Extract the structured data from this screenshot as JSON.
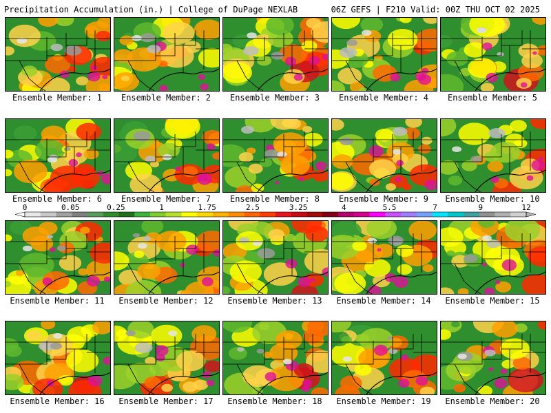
{
  "header": {
    "left": "Precipitation Accumulation (in.) | College of DuPage NEXLAB",
    "right": "06Z GEFS | F210 Valid: 00Z THU OCT 02 2025"
  },
  "members": [
    {
      "label": "Ensemble Member: 1"
    },
    {
      "label": "Ensemble Member: 2"
    },
    {
      "label": "Ensemble Member: 3"
    },
    {
      "label": "Ensemble Member: 4"
    },
    {
      "label": "Ensemble Member: 5"
    },
    {
      "label": "Ensemble Member: 6"
    },
    {
      "label": "Ensemble Member: 7"
    },
    {
      "label": "Ensemble Member: 8"
    },
    {
      "label": "Ensemble Member: 9"
    },
    {
      "label": "Ensemble Member: 10"
    },
    {
      "label": "Ensemble Member: 11"
    },
    {
      "label": "Ensemble Member: 12"
    },
    {
      "label": "Ensemble Member: 13"
    },
    {
      "label": "Ensemble Member: 14"
    },
    {
      "label": "Ensemble Member: 15"
    },
    {
      "label": "Ensemble Member: 16"
    },
    {
      "label": "Ensemble Member: 17"
    },
    {
      "label": "Ensemble Member: 18"
    },
    {
      "label": "Ensemble Member: 19"
    },
    {
      "label": "Ensemble Member: 20"
    }
  ],
  "colorbar": {
    "tick_labels": [
      "0",
      "0.05",
      "0.25",
      "1",
      "1.75",
      "2.5",
      "3.25",
      "4",
      "5.5",
      "7",
      "9",
      "12"
    ],
    "colors": [
      "#e8e8e8",
      "#c8c8c8",
      "#a0a0a0",
      "#808080",
      "#5a9a5a",
      "#2e8b2e",
      "#1f6f1f",
      "#3cb33c",
      "#7fcc2e",
      "#b8e02a",
      "#ffff00",
      "#ffd700",
      "#ffb000",
      "#ff8c00",
      "#ff6400",
      "#ff3c00",
      "#e8141e",
      "#c80a14",
      "#a00a0a",
      "#800014",
      "#b4006e",
      "#d2008c",
      "#ff00ff",
      "#c850ff",
      "#a07cff",
      "#78a0ff",
      "#00e6ff",
      "#00c8c8",
      "#40a0a0",
      "#909090",
      "#b0b0b0",
      "#d0d0d0"
    ]
  }
}
